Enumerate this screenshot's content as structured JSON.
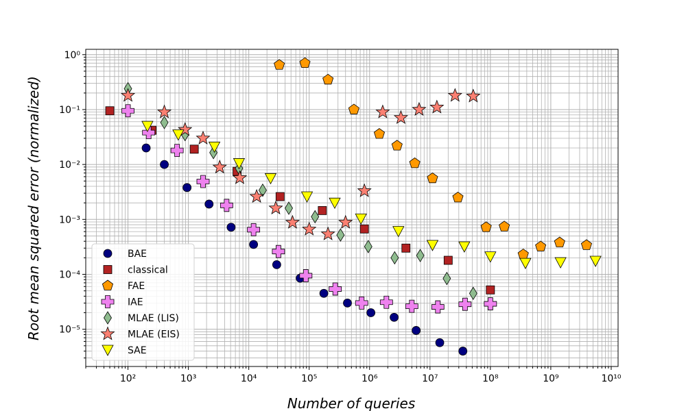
{
  "chart_data": {
    "type": "scatter",
    "title": "",
    "xlabel": "Number of queries",
    "ylabel": "Root mean squared error (normalized)",
    "xscale": "log",
    "yscale": "log",
    "xlim": [
      20,
      13000000000
    ],
    "ylim": [
      2.1e-06,
      1.25
    ],
    "grid": true,
    "legend_position": "lower-left",
    "x_ticks": [
      {
        "value": 100,
        "label": "10²"
      },
      {
        "value": 1000,
        "label": "10³"
      },
      {
        "value": 10000,
        "label": "10⁴"
      },
      {
        "value": 100000,
        "label": "10⁵"
      },
      {
        "value": 1000000,
        "label": "10⁶"
      },
      {
        "value": 10000000,
        "label": "10⁷"
      },
      {
        "value": 100000000,
        "label": "10⁸"
      },
      {
        "value": 1000000000,
        "label": "10⁹"
      },
      {
        "value": 10000000000,
        "label": "10¹⁰"
      }
    ],
    "y_ticks": [
      {
        "value": 1,
        "label": "10⁰"
      },
      {
        "value": 0.1,
        "label": "10⁻¹"
      },
      {
        "value": 0.01,
        "label": "10⁻²"
      },
      {
        "value": 0.001,
        "label": "10⁻³"
      },
      {
        "value": 0.0001,
        "label": "10⁻⁴"
      },
      {
        "value": 1e-05,
        "label": "10⁻⁵"
      }
    ],
    "series": [
      {
        "name": "BAE",
        "marker": "circle",
        "color": "#000080",
        "points": [
          [
            200,
            0.02
          ],
          [
            400,
            0.01
          ],
          [
            950,
            0.0038
          ],
          [
            2200,
            0.0019
          ],
          [
            5100,
            0.00072
          ],
          [
            12000,
            0.00035
          ],
          [
            29000,
            0.00015
          ],
          [
            71000,
            8.5e-05
          ],
          [
            175000,
            4.5e-05
          ],
          [
            430000,
            3e-05
          ],
          [
            1050000,
            2e-05
          ],
          [
            2550000,
            1.65e-05
          ],
          [
            5900000,
            9.5e-06
          ],
          [
            14500000,
            5.7e-06
          ],
          [
            35000000,
            4e-06
          ]
        ]
      },
      {
        "name": "classical",
        "marker": "square",
        "color": "#b22222",
        "points": [
          [
            50,
            0.095
          ],
          [
            250,
            0.042
          ],
          [
            1250,
            0.019
          ],
          [
            6400,
            0.0075
          ],
          [
            33000,
            0.0026
          ],
          [
            165000,
            0.00145
          ],
          [
            820000,
            0.00067
          ],
          [
            4000000,
            0.0003
          ],
          [
            20000000,
            0.00018
          ],
          [
            100000000,
            5.2e-05
          ]
        ]
      },
      {
        "name": "FAE",
        "marker": "pentagon",
        "color": "#ff9900",
        "points": [
          [
            32000,
            0.65
          ],
          [
            85000,
            0.7
          ],
          [
            205000,
            0.35
          ],
          [
            550000,
            0.1
          ],
          [
            1450000,
            0.036
          ],
          [
            2850000,
            0.022
          ],
          [
            5600000,
            0.0105
          ],
          [
            11000000,
            0.0056
          ],
          [
            29000000,
            0.0025
          ],
          [
            85000000,
            0.00072
          ],
          [
            170000000,
            0.00074
          ],
          [
            350000000,
            0.00023
          ],
          [
            680000000,
            0.00032
          ],
          [
            1400000000,
            0.00038
          ],
          [
            3900000000,
            0.00034
          ]
        ]
      },
      {
        "name": "IAE",
        "marker": "plus",
        "color": "#ee82ee",
        "points": [
          [
            100,
            0.095
          ],
          [
            220,
            0.038
          ],
          [
            650,
            0.018
          ],
          [
            1750,
            0.0049
          ],
          [
            4300,
            0.0018
          ],
          [
            12000,
            0.00065
          ],
          [
            31000,
            0.00026
          ],
          [
            88000,
            9.45e-05
          ],
          [
            270000,
            5.4e-05
          ],
          [
            740000,
            3e-05
          ],
          [
            1900000,
            3.1e-05
          ],
          [
            5000000,
            2.62e-05
          ],
          [
            13500000,
            2.55e-05
          ],
          [
            38000000,
            2.85e-05
          ],
          [
            100000000,
            2.9e-05
          ]
        ]
      },
      {
        "name": "MLAE (LIS)",
        "marker": "diamond",
        "color": "#8fbc8f",
        "points": [
          [
            100,
            0.24
          ],
          [
            400,
            0.058
          ],
          [
            880,
            0.035
          ],
          [
            2600,
            0.0165
          ],
          [
            6900,
            0.0085
          ],
          [
            17000,
            0.0034
          ],
          [
            46000,
            0.0016
          ],
          [
            125000,
            0.00112
          ],
          [
            330000,
            0.00052
          ],
          [
            950000,
            0.00032
          ],
          [
            2600000,
            0.0002
          ],
          [
            6900000,
            0.00022
          ],
          [
            19000000,
            8.4e-05
          ],
          [
            52000000,
            4.5e-05
          ]
        ]
      },
      {
        "name": "MLAE (EIS)",
        "marker": "star",
        "color": "#fa8072",
        "points": [
          [
            100,
            0.18
          ],
          [
            400,
            0.09
          ],
          [
            880,
            0.043
          ],
          [
            1750,
            0.03
          ],
          [
            3300,
            0.0089
          ],
          [
            7100,
            0.0057
          ],
          [
            13500,
            0.0026
          ],
          [
            28000,
            0.0016
          ],
          [
            53000,
            0.00088
          ],
          [
            100000,
            0.00066
          ],
          [
            205000,
            0.00054
          ],
          [
            400000,
            0.00088
          ],
          [
            820000,
            0.0033
          ],
          [
            1650000,
            0.09
          ],
          [
            3300000,
            0.071
          ],
          [
            6600000,
            0.1
          ],
          [
            13000000,
            0.11
          ],
          [
            26000000,
            0.18
          ],
          [
            52000000,
            0.175
          ]
        ]
      },
      {
        "name": "SAE",
        "marker": "triangle",
        "color": "#ffff00",
        "points": [
          [
            210,
            0.05
          ],
          [
            680,
            0.035
          ],
          [
            2700,
            0.021
          ],
          [
            6900,
            0.0105
          ],
          [
            23000,
            0.0056
          ],
          [
            92000,
            0.0026
          ],
          [
            265000,
            0.002
          ],
          [
            720000,
            0.00103
          ],
          [
            3000000,
            0.00061
          ],
          [
            11000000,
            0.00034
          ],
          [
            37000000,
            0.00032
          ],
          [
            100000000,
            0.00021
          ],
          [
            380000000,
            0.00016
          ],
          [
            1450000000,
            0.000165
          ],
          [
            5500000000,
            0.000175
          ]
        ]
      }
    ]
  }
}
